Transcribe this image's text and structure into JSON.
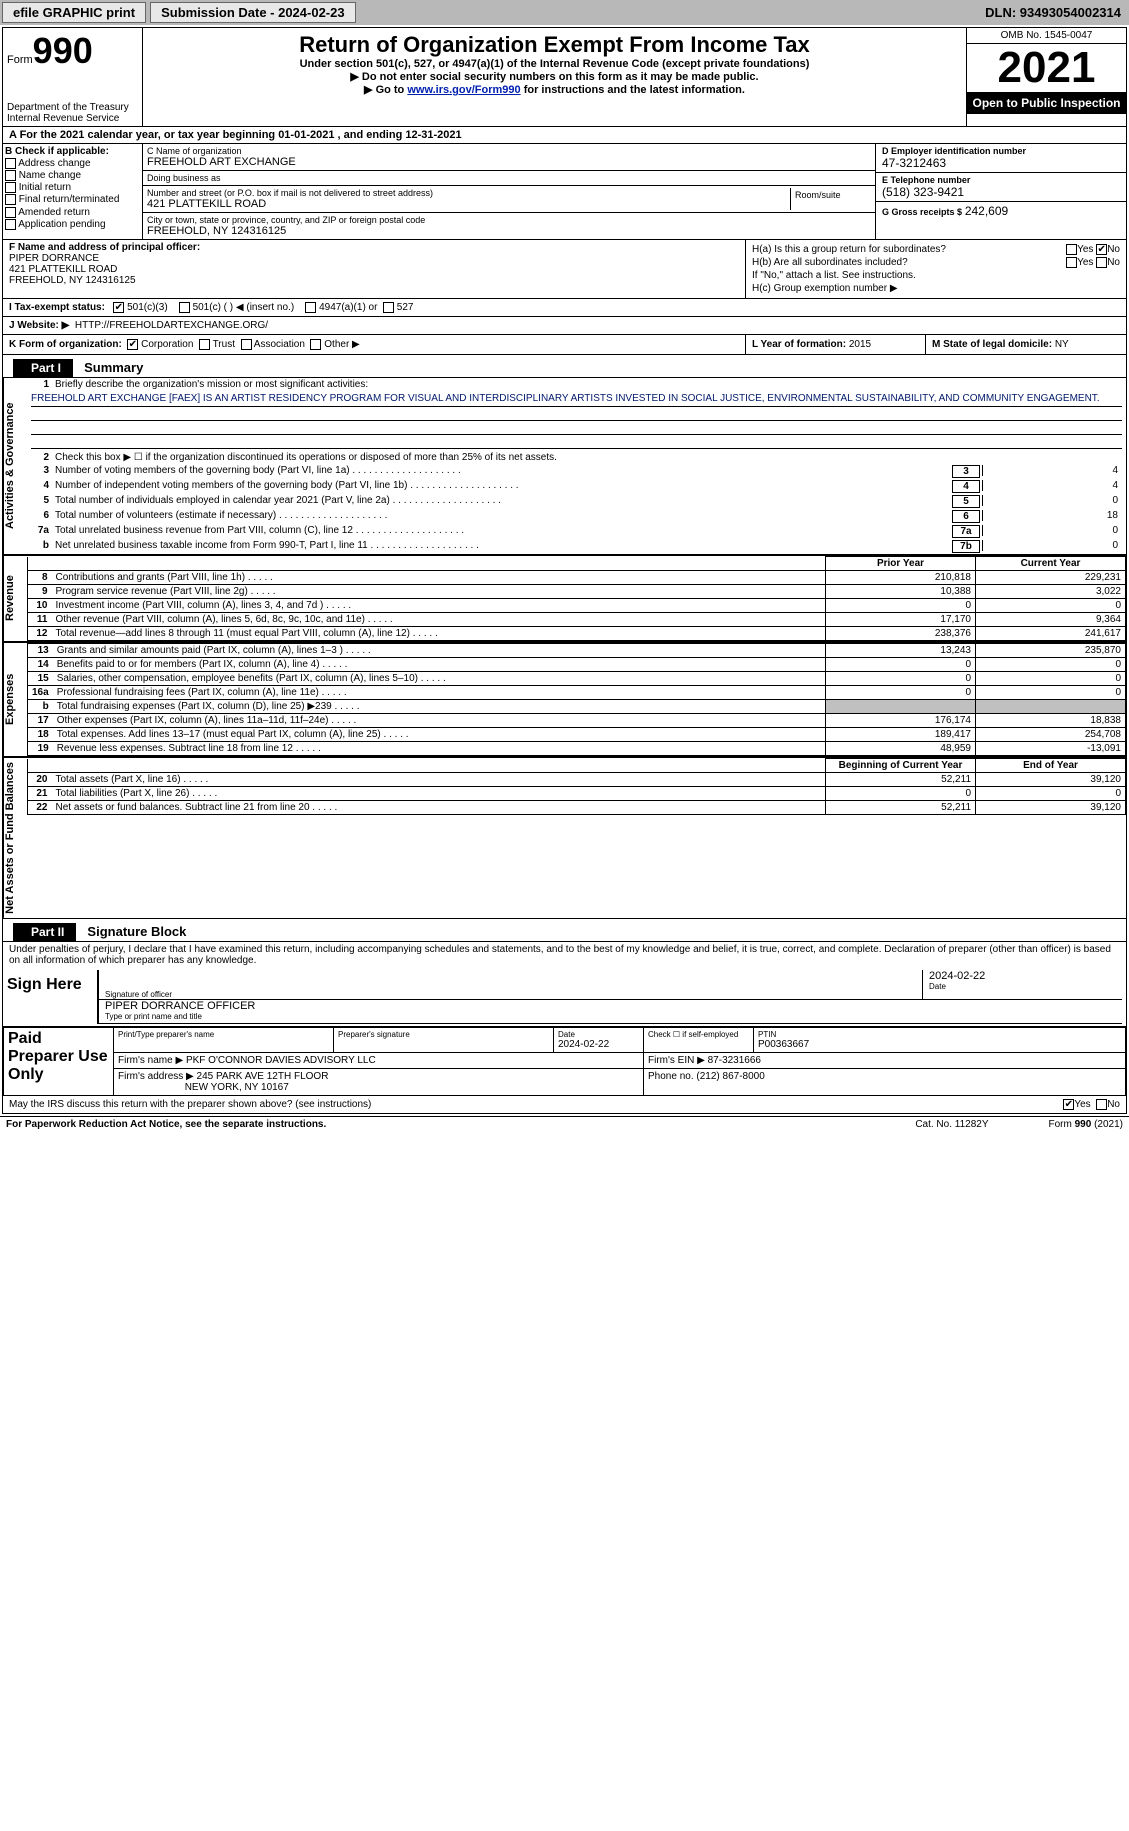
{
  "topbar": {
    "efile_label": "efile GRAPHIC print",
    "submission_label": "Submission Date - 2024-02-23",
    "dln_label": "DLN: 93493054002314"
  },
  "header": {
    "form_word": "Form",
    "form_num": "990",
    "dept": "Department of the Treasury\nInternal Revenue Service",
    "title": "Return of Organization Exempt From Income Tax",
    "sub": "Under section 501(c), 527, or 4947(a)(1) of the Internal Revenue Code (except private foundations)",
    "sub2a": "▶ Do not enter social security numbers on this form as it may be made public.",
    "sub2b_prefix": "▶ Go to ",
    "sub2b_link": "www.irs.gov/Form990",
    "sub2b_suffix": " for instructions and the latest information.",
    "omb": "OMB No. 1545-0047",
    "year": "2021",
    "open": "Open to Public Inspection"
  },
  "row_a": "A For the 2021 calendar year, or tax year beginning 01-01-2021   , and ending 12-31-2021",
  "col_b": {
    "label": "B Check if applicable:",
    "items": [
      "Address change",
      "Name change",
      "Initial return",
      "Final return/terminated",
      "Amended return",
      "Application pending"
    ]
  },
  "box_c": {
    "name_lbl": "C Name of organization",
    "name": "FREEHOLD ART EXCHANGE",
    "dba_lbl": "Doing business as",
    "dba": "",
    "street_lbl": "Number and street (or P.O. box if mail is not delivered to street address)",
    "street": "421 PLATTEKILL ROAD",
    "room_lbl": "Room/suite",
    "room": "",
    "city_lbl": "City or town, state or province, country, and ZIP or foreign postal code",
    "city": "FREEHOLD, NY  124316125"
  },
  "col_d": {
    "ein_lbl": "D Employer identification number",
    "ein": "47-3212463",
    "phone_lbl": "E Telephone number",
    "phone": "(518) 323-9421",
    "gross_lbl": "G Gross receipts $",
    "gross": "242,609"
  },
  "box_f": {
    "lbl": "F Name and address of principal officer:",
    "name": "PIPER DORRANCE",
    "street": "421 PLATTEKILL ROAD",
    "city": "FREEHOLD, NY  124316125"
  },
  "box_h": {
    "ha": "H(a)  Is this a group return for subordinates?",
    "hb": "H(b)  Are all subordinates included?",
    "hb_note": "If \"No,\" attach a list. See instructions.",
    "hc": "H(c)  Group exemption number ▶",
    "yes": "Yes",
    "no": "No"
  },
  "row_i": {
    "lbl": "I  Tax-exempt status:",
    "o1": "501(c)(3)",
    "o2": "501(c) (  ) ◀ (insert no.)",
    "o3": "4947(a)(1) or",
    "o4": "527"
  },
  "row_j": {
    "lbl": "J  Website: ▶",
    "val": "HTTP://FREEHOLDARTEXCHANGE.ORG/"
  },
  "row_k": {
    "k_lbl": "K Form of organization:",
    "k_opts": [
      "Corporation",
      "Trust",
      "Association",
      "Other ▶"
    ],
    "l_lbl": "L Year of formation:",
    "l_val": "2015",
    "m_lbl": "M State of legal domicile:",
    "m_val": "NY"
  },
  "part1": {
    "hdr": "Part I",
    "title": "Summary",
    "vlabel1": "Activities & Governance",
    "vlabel2": "Revenue",
    "vlabel3": "Expenses",
    "vlabel4": "Net Assets or Fund Balances",
    "l1_lbl": "Briefly describe the organization's mission or most significant activities:",
    "l1_txt": "FREEHOLD ART EXCHANGE [FAEX] IS AN ARTIST RESIDENCY PROGRAM FOR VISUAL AND INTERDISCIPLINARY ARTISTS INVESTED IN SOCIAL JUSTICE, ENVIRONMENTAL SUSTAINABILITY, AND COMMUNITY ENGAGEMENT.",
    "l2": "Check this box ▶ ☐ if the organization discontinued its operations or disposed of more than 25% of its net assets.",
    "lines_ag": [
      {
        "n": "3",
        "t": "Number of voting members of the governing body (Part VI, line 1a)",
        "b": "3",
        "v": "4"
      },
      {
        "n": "4",
        "t": "Number of independent voting members of the governing body (Part VI, line 1b)",
        "b": "4",
        "v": "4"
      },
      {
        "n": "5",
        "t": "Total number of individuals employed in calendar year 2021 (Part V, line 2a)",
        "b": "5",
        "v": "0"
      },
      {
        "n": "6",
        "t": "Total number of volunteers (estimate if necessary)",
        "b": "6",
        "v": "18"
      },
      {
        "n": "7a",
        "t": "Total unrelated business revenue from Part VIII, column (C), line 12",
        "b": "7a",
        "v": "0"
      },
      {
        "n": "b",
        "t": "Net unrelated business taxable income from Form 990-T, Part I, line 11",
        "b": "7b",
        "v": "0"
      }
    ],
    "col_prior": "Prior Year",
    "col_current": "Current Year",
    "rev": [
      {
        "n": "8",
        "t": "Contributions and grants (Part VIII, line 1h)",
        "p": "210,818",
        "c": "229,231"
      },
      {
        "n": "9",
        "t": "Program service revenue (Part VIII, line 2g)",
        "p": "10,388",
        "c": "3,022"
      },
      {
        "n": "10",
        "t": "Investment income (Part VIII, column (A), lines 3, 4, and 7d )",
        "p": "0",
        "c": "0"
      },
      {
        "n": "11",
        "t": "Other revenue (Part VIII, column (A), lines 5, 6d, 8c, 9c, 10c, and 11e)",
        "p": "17,170",
        "c": "9,364"
      },
      {
        "n": "12",
        "t": "Total revenue—add lines 8 through 11 (must equal Part VIII, column (A), line 12)",
        "p": "238,376",
        "c": "241,617"
      }
    ],
    "exp": [
      {
        "n": "13",
        "t": "Grants and similar amounts paid (Part IX, column (A), lines 1–3 )",
        "p": "13,243",
        "c": "235,870"
      },
      {
        "n": "14",
        "t": "Benefits paid to or for members (Part IX, column (A), line 4)",
        "p": "0",
        "c": "0"
      },
      {
        "n": "15",
        "t": "Salaries, other compensation, employee benefits (Part IX, column (A), lines 5–10)",
        "p": "0",
        "c": "0"
      },
      {
        "n": "16a",
        "t": "Professional fundraising fees (Part IX, column (A), line 11e)",
        "p": "0",
        "c": "0"
      },
      {
        "n": "b",
        "t": "Total fundraising expenses (Part IX, column (D), line 25) ▶239",
        "p": "grey",
        "c": "grey"
      },
      {
        "n": "17",
        "t": "Other expenses (Part IX, column (A), lines 11a–11d, 11f–24e)",
        "p": "176,174",
        "c": "18,838"
      },
      {
        "n": "18",
        "t": "Total expenses. Add lines 13–17 (must equal Part IX, column (A), line 25)",
        "p": "189,417",
        "c": "254,708"
      },
      {
        "n": "19",
        "t": "Revenue less expenses. Subtract line 18 from line 12",
        "p": "48,959",
        "c": "-13,091"
      }
    ],
    "col_begin": "Beginning of Current Year",
    "col_end": "End of Year",
    "net": [
      {
        "n": "20",
        "t": "Total assets (Part X, line 16)",
        "p": "52,211",
        "c": "39,120"
      },
      {
        "n": "21",
        "t": "Total liabilities (Part X, line 26)",
        "p": "0",
        "c": "0"
      },
      {
        "n": "22",
        "t": "Net assets or fund balances. Subtract line 21 from line 20",
        "p": "52,211",
        "c": "39,120"
      }
    ]
  },
  "part2": {
    "hdr": "Part II",
    "title": "Signature Block",
    "decl": "Under penalties of perjury, I declare that I have examined this return, including accompanying schedules and statements, and to the best of my knowledge and belief, it is true, correct, and complete. Declaration of preparer (other than officer) is based on all information of which preparer has any knowledge.",
    "sign_here": "Sign Here",
    "sig_officer_lbl": "Signature of officer",
    "sig_date": "2024-02-22",
    "sig_date_lbl": "Date",
    "sig_name": "PIPER DORRANCE OFFICER",
    "sig_name_lbl": "Type or print name and title",
    "paid_lbl": "Paid Preparer Use Only",
    "prep_name_lbl": "Print/Type preparer's name",
    "prep_sig_lbl": "Preparer's signature",
    "prep_date_lbl": "Date",
    "prep_date": "2024-02-22",
    "prep_self_lbl": "Check ☐ if self-employed",
    "ptin_lbl": "PTIN",
    "ptin": "P00363667",
    "firm_name_lbl": "Firm's name    ▶",
    "firm_name": "PKF O'CONNOR DAVIES ADVISORY LLC",
    "firm_ein_lbl": "Firm's EIN ▶",
    "firm_ein": "87-3231666",
    "firm_addr_lbl": "Firm's address ▶",
    "firm_addr1": "245 PARK AVE 12TH FLOOR",
    "firm_addr2": "NEW YORK, NY  10167",
    "firm_phone_lbl": "Phone no.",
    "firm_phone": "(212) 867-8000",
    "discuss": "May the IRS discuss this return with the preparer shown above? (see instructions)",
    "yes": "Yes",
    "no": "No"
  },
  "footer": {
    "pra": "For Paperwork Reduction Act Notice, see the separate instructions.",
    "cat": "Cat. No. 11282Y",
    "form": "Form 990 (2021)"
  }
}
